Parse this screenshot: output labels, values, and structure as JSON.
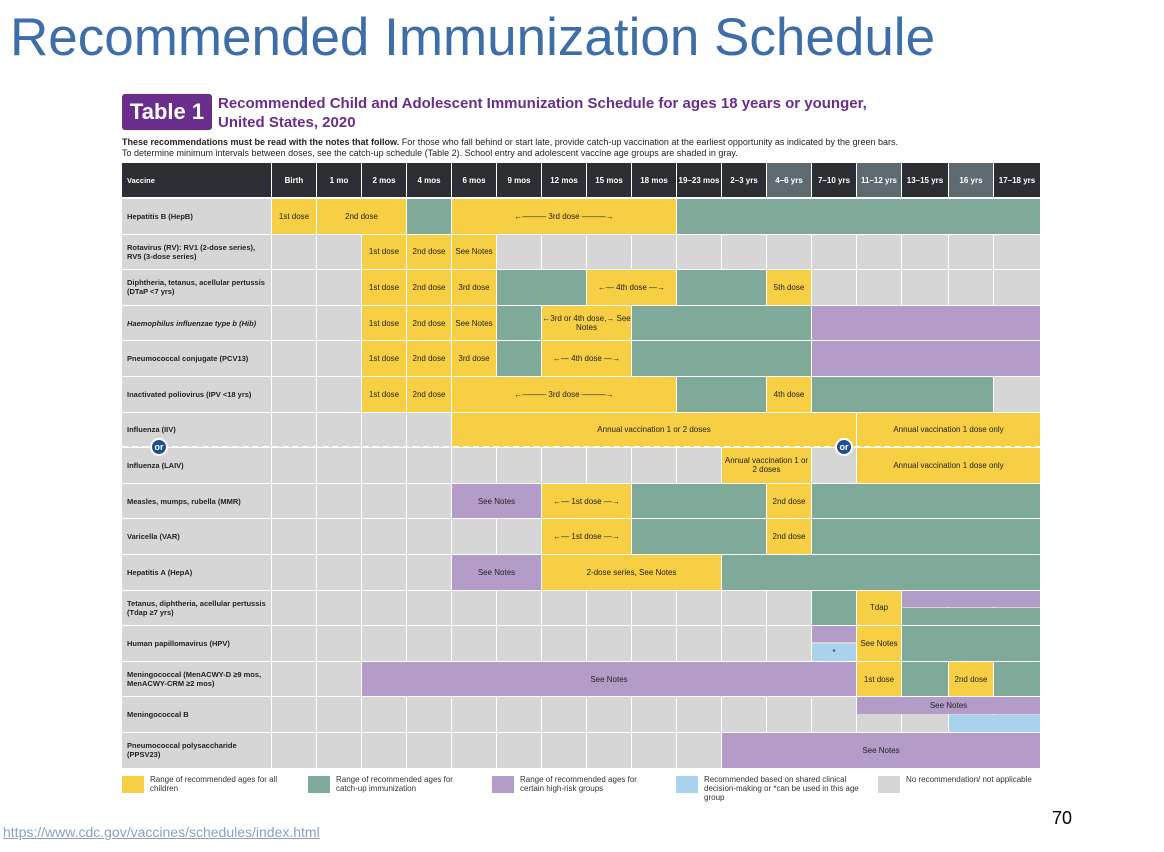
{
  "slide_title": "Recommended Immunization Schedule",
  "table_badge": "Table 1",
  "subtitle_line1": "Recommended Child and Adolescent Immunization Schedule for ages 18 years or younger,",
  "subtitle_line2": "United States, 2020",
  "intro_bold": "These recommendations must be read with the notes that follow.",
  "intro_rest": " For those who fall behind or start late, provide catch-up vaccination at the earliest opportunity as indicated by the green bars.",
  "intro_line2": "To determine minimum intervals between doses, see the catch-up schedule (Table 2). School entry and adolescent vaccine age groups are shaded in gray.",
  "colors": {
    "yellow": "#f6cf45",
    "green": "#7fa998",
    "purple": "#b39cc8",
    "blue": "#a9d2ec",
    "gray": "#d6d6d6",
    "header_dark": "#2b2f33",
    "header_shaded": "#5f6970",
    "title_blue": "#3e6ea8",
    "badge_purple": "#6b2d8b"
  },
  "columns": [
    "Vaccine",
    "Birth",
    "1 mo",
    "2 mos",
    "4 mos",
    "6 mos",
    "9 mos",
    "12 mos",
    "15 mos",
    "18 mos",
    "19–23 mos",
    "2–3 yrs",
    "4–6 yrs",
    "7–10 yrs",
    "11–12 yrs",
    "13–15 yrs",
    "16 yrs",
    "17–18 yrs"
  ],
  "shaded_columns": [
    "4–6 yrs",
    "11–12 yrs",
    "16 yrs"
  ],
  "rows": [
    {
      "label": "Hepatitis B (HepB)",
      "segments": [
        [
          "Y",
          1,
          1,
          "1st dose"
        ],
        [
          "Y",
          2,
          3,
          "2nd dose"
        ],
        [
          "G",
          4,
          4,
          ""
        ],
        [
          "Y",
          5,
          9,
          "←——— 3rd dose ———→"
        ],
        [
          "G",
          10,
          17,
          ""
        ]
      ]
    },
    {
      "label": "Rotavirus (RV): RV1 (2-dose series), RV5 (3-dose series)",
      "segments": [
        [
          "Y",
          3,
          3,
          "1st dose"
        ],
        [
          "Y",
          4,
          4,
          "2nd dose"
        ],
        [
          "Y",
          5,
          5,
          "See Notes"
        ]
      ]
    },
    {
      "label": "Diphtheria, tetanus, acellular pertussis (DTaP <7 yrs)",
      "segments": [
        [
          "Y",
          3,
          3,
          "1st dose"
        ],
        [
          "Y",
          4,
          4,
          "2nd dose"
        ],
        [
          "Y",
          5,
          5,
          "3rd dose"
        ],
        [
          "G",
          6,
          7,
          ""
        ],
        [
          "Y",
          8,
          9,
          "←— 4th dose —→"
        ],
        [
          "G",
          10,
          11,
          ""
        ],
        [
          "Y",
          12,
          12,
          "5th dose"
        ]
      ]
    },
    {
      "label": "Haemophilus influenzae type b (Hib)",
      "italic": true,
      "segments": [
        [
          "Y",
          3,
          3,
          "1st dose"
        ],
        [
          "Y",
          4,
          4,
          "2nd dose"
        ],
        [
          "Y",
          5,
          5,
          "See Notes"
        ],
        [
          "G",
          6,
          6,
          ""
        ],
        [
          "Y",
          7,
          8,
          "←3rd or 4th dose,→ See Notes"
        ],
        [
          "G",
          9,
          12,
          ""
        ],
        [
          "P",
          13,
          17,
          ""
        ]
      ]
    },
    {
      "label": "Pneumococcal conjugate (PCV13)",
      "segments": [
        [
          "Y",
          3,
          3,
          "1st dose"
        ],
        [
          "Y",
          4,
          4,
          "2nd dose"
        ],
        [
          "Y",
          5,
          5,
          "3rd dose"
        ],
        [
          "G",
          6,
          6,
          ""
        ],
        [
          "Y",
          7,
          8,
          "←— 4th dose —→"
        ],
        [
          "G",
          9,
          12,
          ""
        ],
        [
          "P",
          13,
          17,
          ""
        ]
      ]
    },
    {
      "label": "Inactivated poliovirus (IPV <18 yrs)",
      "segments": [
        [
          "Y",
          3,
          3,
          "1st dose"
        ],
        [
          "Y",
          4,
          4,
          "2nd dose"
        ],
        [
          "Y",
          5,
          9,
          "←——— 3rd dose ———→"
        ],
        [
          "G",
          10,
          11,
          ""
        ],
        [
          "Y",
          12,
          12,
          "4th dose"
        ],
        [
          "G",
          13,
          16,
          ""
        ]
      ]
    },
    {
      "label": "Influenza (IIV)",
      "segments": [
        [
          "Y",
          5,
          13,
          "Annual vaccination 1 or 2 doses"
        ],
        [
          "Y",
          14,
          17,
          "Annual vaccination 1 dose only"
        ]
      ]
    },
    {
      "label": "Influenza (LAIV)",
      "segments": [
        [
          "Y",
          11,
          12,
          "Annual vaccination 1 or 2 doses"
        ],
        [
          "Y",
          14,
          17,
          "Annual vaccination 1 dose only"
        ]
      ]
    },
    {
      "label": "Measles, mumps, rubella (MMR)",
      "segments": [
        [
          "P",
          5,
          6,
          "See Notes"
        ],
        [
          "Y",
          7,
          8,
          "←— 1st dose —→"
        ],
        [
          "G",
          9,
          11,
          ""
        ],
        [
          "Y",
          12,
          12,
          "2nd dose"
        ],
        [
          "G",
          13,
          17,
          ""
        ]
      ]
    },
    {
      "label": "Varicella (VAR)",
      "segments": [
        [
          "Y",
          7,
          8,
          "←— 1st dose —→"
        ],
        [
          "G",
          9,
          11,
          ""
        ],
        [
          "Y",
          12,
          12,
          "2nd dose"
        ],
        [
          "G",
          13,
          17,
          ""
        ]
      ]
    },
    {
      "label": "Hepatitis A (HepA)",
      "segments": [
        [
          "P",
          5,
          6,
          "See Notes"
        ],
        [
          "Y",
          7,
          10,
          "2-dose series, See Notes"
        ],
        [
          "G",
          11,
          17,
          ""
        ]
      ]
    },
    {
      "label": "Tetanus, diphtheria, acellular pertussis (Tdap ≥7 yrs)",
      "segments": [
        [
          "G",
          13,
          13,
          ""
        ],
        [
          "Y",
          14,
          14,
          "Tdap"
        ],
        [
          "Ptop",
          15,
          17,
          ""
        ],
        [
          "Gbot",
          15,
          17,
          ""
        ]
      ]
    },
    {
      "label": "Human papillomavirus (HPV)",
      "segments": [
        [
          "Ptop",
          13,
          13,
          ""
        ],
        [
          "Bbot",
          13,
          13,
          "*"
        ],
        [
          "Y",
          14,
          14,
          "See Notes"
        ],
        [
          "G",
          15,
          17,
          ""
        ]
      ]
    },
    {
      "label": "Meningococcal (MenACWY-D ≥9 mos, MenACWY-CRM ≥2 mos)",
      "segments": [
        [
          "P",
          3,
          13,
          "See Notes"
        ],
        [
          "Y",
          14,
          14,
          "1st dose"
        ],
        [
          "G",
          15,
          15,
          ""
        ],
        [
          "Y",
          16,
          16,
          "2nd dose"
        ],
        [
          "G",
          17,
          17,
          ""
        ]
      ]
    },
    {
      "label": "Meningococcal B",
      "segments": [
        [
          "Ptop",
          14,
          17,
          "See Notes"
        ],
        [
          "Bbot",
          16,
          17,
          ""
        ]
      ]
    },
    {
      "label": "Pneumococcal polysaccharide (PPSV23)",
      "segments": [
        [
          "P",
          11,
          17,
          "See Notes"
        ]
      ]
    }
  ],
  "or_label": "or",
  "legend": [
    {
      "color": "yellow",
      "text": "Range of recommended ages for all children"
    },
    {
      "color": "green",
      "text": "Range of recommended ages for catch-up immunization"
    },
    {
      "color": "purple",
      "text": "Range of recommended ages for certain high-risk groups"
    },
    {
      "color": "blue",
      "text": "Recommended based on shared clinical decision-making or *can be used in this age group"
    },
    {
      "color": "gray",
      "text": "No recommendation/ not applicable"
    }
  ],
  "page_number": "70",
  "source_link": "https://www.cdc.gov/vaccines/schedules/index.html"
}
